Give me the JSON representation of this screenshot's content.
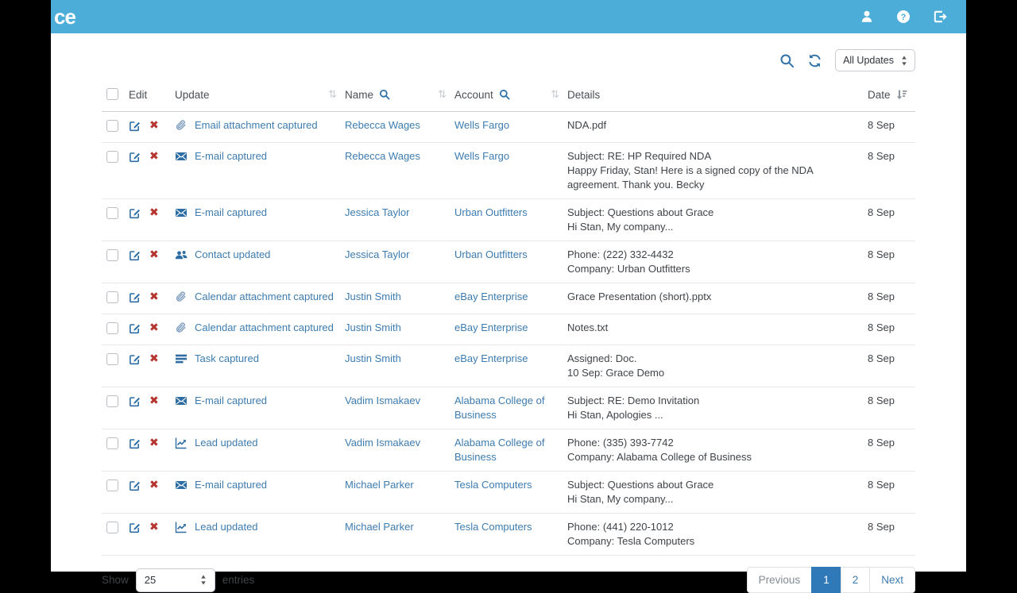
{
  "topbar": {
    "logo_text": "ce",
    "icons": [
      "user-icon",
      "help-icon",
      "logout-icon"
    ]
  },
  "toolbar": {
    "search_icon": "search-icon",
    "refresh_icon": "refresh-icon",
    "filter_select": {
      "value": "All Updates"
    }
  },
  "table": {
    "columns": {
      "edit": "Edit",
      "update": "Update",
      "name": "Name",
      "account": "Account",
      "details": "Details",
      "date": "Date"
    },
    "rows": [
      {
        "icon": "paperclip-icon",
        "update": "Email attachment captured",
        "name": "Rebecca Wages",
        "account": "Wells Fargo",
        "details": [
          "NDA.pdf"
        ],
        "date": "8 Sep"
      },
      {
        "icon": "envelope-icon",
        "update": "E-mail captured",
        "name": "Rebecca Wages",
        "account": "Wells Fargo",
        "details": [
          "Subject: RE: HP Required NDA",
          "Happy Friday, Stan! Here is a signed copy of the NDA agreement. Thank you. Becky"
        ],
        "date": "8 Sep"
      },
      {
        "icon": "envelope-icon",
        "update": "E-mail captured",
        "name": "Jessica Taylor",
        "account": "Urban Outfitters",
        "details": [
          "Subject: Questions about Grace",
          "Hi Stan, My company..."
        ],
        "date": "8 Sep"
      },
      {
        "icon": "users-icon",
        "update": "Contact updated",
        "name": "Jessica Taylor",
        "account": "Urban Outfitters",
        "details": [
          "Phone: (222) 332-4432",
          "Company: Urban Outfitters"
        ],
        "date": "8 Sep"
      },
      {
        "icon": "paperclip-icon",
        "update": "Calendar attachment captured",
        "name": "Justin Smith",
        "account": "eBay Enterprise",
        "details": [
          "Grace Presentation (short).pptx"
        ],
        "date": "8 Sep"
      },
      {
        "icon": "paperclip-icon",
        "update": "Calendar attachment captured",
        "name": "Justin Smith",
        "account": "eBay Enterprise",
        "details": [
          "Notes.txt"
        ],
        "date": "8 Sep"
      },
      {
        "icon": "tasks-icon",
        "update": "Task captured",
        "name": "Justin Smith",
        "account": "eBay Enterprise",
        "details": [
          "Assigned: Doc.",
          "10 Sep: Grace Demo"
        ],
        "date": "8 Sep"
      },
      {
        "icon": "envelope-icon",
        "update": "E-mail captured",
        "name": "Vadim Ismakaev",
        "account": "Alabama College of Business",
        "details": [
          "Subject: RE: Demo Invitation",
          "Hi Stan, Apologies ..."
        ],
        "date": "8 Sep"
      },
      {
        "icon": "chart-icon",
        "update": "Lead updated",
        "name": "Vadim Ismakaev",
        "account": "Alabama College of Business",
        "details": [
          "Phone: (335) 393-7742",
          "Company: Alabama College of Business"
        ],
        "date": "8 Sep"
      },
      {
        "icon": "envelope-icon",
        "update": "E-mail captured",
        "name": "Michael Parker",
        "account": "Tesla Computers",
        "details": [
          "Subject: Questions about Grace",
          "Hi Stan, My company..."
        ],
        "date": "8 Sep"
      },
      {
        "icon": "chart-icon",
        "update": "Lead updated",
        "name": "Michael Parker",
        "account": "Tesla Computers",
        "details": [
          "Phone: (441) 220-1012",
          "Company: Tesla Computers"
        ],
        "date": "8 Sep"
      }
    ]
  },
  "footer": {
    "show_label": "Show",
    "page_size": {
      "value": "25"
    },
    "entries_label": "entries",
    "pagination": {
      "previous_label": "Previous",
      "pages": [
        "1",
        "2"
      ],
      "active_page": "1",
      "next_label": "Next"
    }
  },
  "colors": {
    "brand_teal": "#4badd8",
    "link_blue": "#3d7cb0",
    "icon_blue": "#2d6da3",
    "delete_red": "#b5342d",
    "active_page_bg": "#2f79b9"
  }
}
